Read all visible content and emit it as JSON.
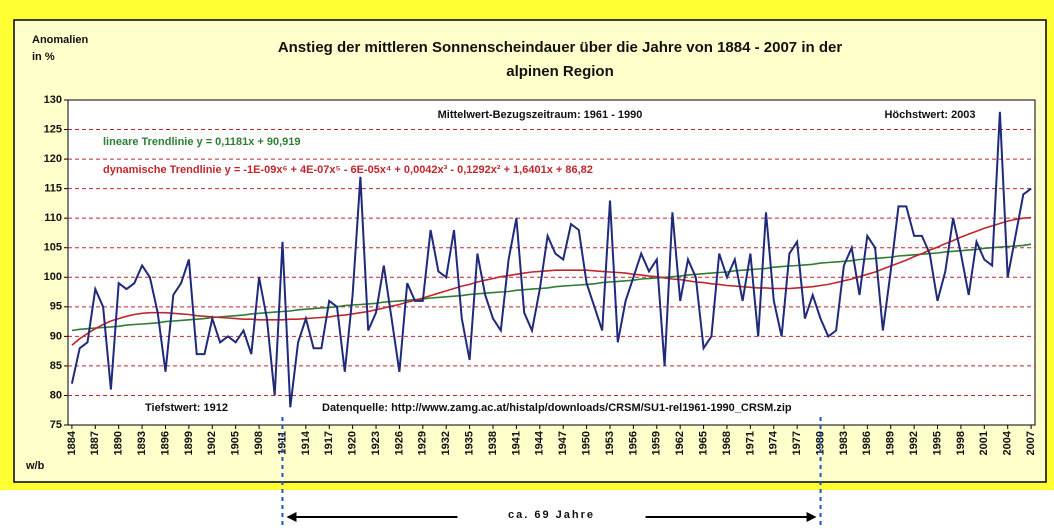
{
  "chart_data": {
    "type": "line",
    "title": "Anstieg der mittleren Sonnenscheindauer über die Jahre von 1884 - 2007 in der",
    "subtitle": "alpinen Region",
    "y_label": [
      "Anomalien",
      "in %"
    ],
    "corner_label": "w/b",
    "annotations": {
      "reference": "Mittelwert-Bezugszeitraum: 1961 - 1990",
      "max": "Höchstwert: 2003",
      "min": "Tiefstwert: 1912",
      "source": "Datenquelle: http://www.zamg.ac.at/histalp/downloads/CRSM/SU1-rel1961-1990_CRSM.zip"
    },
    "bracket": {
      "label": "ca. 69 Jahre",
      "x": [
        1911,
        1980
      ],
      "color": "#1f4fd8"
    },
    "xlim": [
      1883.5,
      2007.5
    ],
    "ylim": [
      75,
      130
    ],
    "yticks": [
      75,
      80,
      85,
      90,
      95,
      100,
      105,
      110,
      115,
      120,
      125,
      130
    ],
    "xticks": [
      1884,
      1887,
      1890,
      1893,
      1896,
      1899,
      1902,
      1905,
      1908,
      1911,
      1914,
      1917,
      1920,
      1923,
      1926,
      1929,
      1932,
      1935,
      1938,
      1941,
      1944,
      1947,
      1950,
      1953,
      1956,
      1959,
      1962,
      1965,
      1968,
      1971,
      1974,
      1977,
      1980,
      1983,
      1986,
      1989,
      1992,
      1995,
      1998,
      2001,
      2004,
      2007
    ],
    "grid": true,
    "grid_color": "#c0272d",
    "x": [
      1884,
      1885,
      1886,
      1887,
      1888,
      1889,
      1890,
      1891,
      1892,
      1893,
      1894,
      1895,
      1896,
      1897,
      1898,
      1899,
      1900,
      1901,
      1902,
      1903,
      1904,
      1905,
      1906,
      1907,
      1908,
      1909,
      1910,
      1911,
      1912,
      1913,
      1914,
      1915,
      1916,
      1917,
      1918,
      1919,
      1920,
      1921,
      1922,
      1923,
      1924,
      1925,
      1926,
      1927,
      1928,
      1929,
      1930,
      1931,
      1932,
      1933,
      1934,
      1935,
      1936,
      1937,
      1938,
      1939,
      1940,
      1941,
      1942,
      1943,
      1944,
      1945,
      1946,
      1947,
      1948,
      1949,
      1950,
      1951,
      1952,
      1953,
      1954,
      1955,
      1956,
      1957,
      1958,
      1959,
      1960,
      1961,
      1962,
      1963,
      1964,
      1965,
      1966,
      1967,
      1968,
      1969,
      1970,
      1971,
      1972,
      1973,
      1974,
      1975,
      1976,
      1977,
      1978,
      1979,
      1980,
      1981,
      1982,
      1983,
      1984,
      1985,
      1986,
      1987,
      1988,
      1989,
      1990,
      1991,
      1992,
      1993,
      1994,
      1995,
      1996,
      1997,
      1998,
      1999,
      2000,
      2001,
      2002,
      2003,
      2004,
      2005,
      2006,
      2007
    ],
    "series": [
      {
        "color": "#1f2a7a",
        "values": [
          82,
          88,
          89,
          98,
          95,
          81,
          99,
          98,
          99,
          102,
          100,
          94,
          84,
          97,
          99,
          103,
          87,
          87,
          93,
          89,
          90,
          89,
          91,
          87,
          100,
          93,
          80,
          106,
          78,
          89,
          93,
          88,
          88,
          96,
          95,
          84,
          97,
          117,
          91,
          94,
          102,
          93,
          84,
          99,
          96,
          96,
          108,
          101,
          100,
          108,
          93,
          86,
          104,
          97,
          93,
          91,
          103,
          110,
          94,
          91,
          98,
          107,
          104,
          103,
          109,
          108,
          99,
          95,
          91,
          113,
          89,
          96,
          100,
          104,
          101,
          103,
          85,
          111,
          96,
          103,
          100,
          88,
          90,
          104,
          100,
          103,
          96,
          104,
          90,
          111,
          96,
          90,
          104,
          106,
          93,
          97,
          93,
          90,
          91,
          102,
          105,
          97,
          107,
          105,
          91,
          101,
          112,
          112,
          107,
          107,
          104,
          96,
          101,
          110,
          104,
          97,
          106,
          103,
          102,
          128,
          100,
          107,
          114,
          115
        ]
      },
      {
        "name": "lineare Trendlinie y = 0,1181x + 90,919",
        "color": "#2e7d32",
        "values": [
          91.0,
          91.2,
          91.3,
          91.4,
          91.5,
          91.6,
          91.7,
          91.9,
          92.0,
          92.1,
          92.2,
          92.3,
          92.5,
          92.6,
          92.7,
          92.8,
          92.9,
          93.0,
          93.2,
          93.3,
          93.4,
          93.5,
          93.6,
          93.8,
          93.9,
          94.0,
          94.1,
          94.2,
          94.3,
          94.5,
          94.6,
          94.7,
          94.8,
          94.9,
          95.0,
          95.2,
          95.3,
          95.4,
          95.5,
          95.6,
          95.8,
          95.9,
          96.0,
          96.1,
          96.2,
          96.3,
          96.5,
          96.6,
          96.7,
          96.8,
          96.9,
          97.1,
          97.2,
          97.3,
          97.4,
          97.5,
          97.6,
          97.8,
          97.9,
          98.0,
          98.1,
          98.2,
          98.4,
          98.5,
          98.6,
          98.7,
          98.8,
          98.9,
          99.1,
          99.2,
          99.3,
          99.4,
          99.5,
          99.7,
          99.8,
          99.9,
          100.0,
          100.1,
          100.2,
          100.4,
          100.5,
          100.6,
          100.7,
          100.8,
          100.9,
          101.1,
          101.2,
          101.3,
          101.4,
          101.5,
          101.7,
          101.8,
          101.9,
          102.0,
          102.1,
          102.2,
          102.4,
          102.5,
          102.6,
          102.7,
          102.8,
          103.0,
          103.1,
          103.2,
          103.3,
          103.4,
          103.6,
          103.7,
          103.8,
          103.9,
          104.0,
          104.1,
          104.3,
          104.4,
          104.5,
          104.6,
          104.7,
          104.9,
          105.0,
          105.1,
          105.2,
          105.3,
          105.4,
          105.6
        ]
      },
      {
        "name": "dynamische  Trendlinie y = -1E-09x⁶ + 4E-07x⁵ - 6E-05x⁴ + 0,0042x³ - 0,1292x² + 1,6401x + 86,82",
        "color": "#c0272d",
        "values": [
          88.5,
          89.6,
          90.5,
          91.3,
          92.0,
          92.6,
          93.0,
          93.4,
          93.7,
          93.9,
          94.0,
          94.0,
          94.0,
          93.9,
          93.8,
          93.7,
          93.5,
          93.4,
          93.3,
          93.2,
          93.1,
          93.0,
          92.9,
          92.9,
          92.8,
          92.8,
          92.8,
          92.8,
          92.9,
          92.9,
          93.0,
          93.1,
          93.2,
          93.3,
          93.5,
          93.6,
          93.8,
          94.0,
          94.2,
          94.5,
          94.8,
          95.1,
          95.4,
          95.8,
          96.1,
          96.5,
          96.9,
          97.3,
          97.7,
          98.1,
          98.5,
          98.8,
          99.2,
          99.5,
          99.8,
          100.1,
          100.3,
          100.5,
          100.7,
          100.9,
          101.0,
          101.1,
          101.2,
          101.2,
          101.2,
          101.2,
          101.2,
          101.1,
          101.0,
          100.9,
          100.8,
          100.7,
          100.5,
          100.4,
          100.2,
          100.1,
          99.9,
          99.7,
          99.6,
          99.4,
          99.2,
          99.1,
          98.9,
          98.8,
          98.6,
          98.5,
          98.4,
          98.3,
          98.2,
          98.2,
          98.1,
          98.1,
          98.1,
          98.2,
          98.3,
          98.4,
          98.6,
          98.8,
          99.1,
          99.4,
          99.7,
          100.1,
          100.5,
          100.9,
          101.4,
          101.9,
          102.4,
          102.9,
          103.5,
          104.0,
          104.6,
          105.1,
          105.7,
          106.2,
          106.8,
          107.3,
          107.8,
          108.3,
          108.7,
          109.1,
          109.5,
          109.8,
          110.0,
          110.1
        ]
      }
    ]
  }
}
